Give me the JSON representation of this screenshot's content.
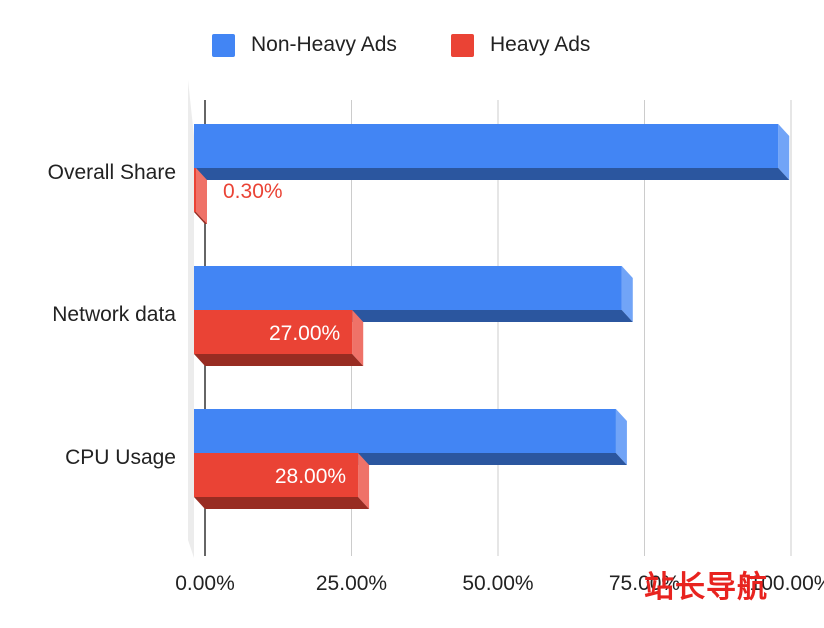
{
  "chart_data": {
    "type": "bar",
    "orientation": "horizontal",
    "style": "3d",
    "categories": [
      "Overall Share",
      "Network data",
      "CPU Usage"
    ],
    "series": [
      {
        "name": "Non-Heavy Ads",
        "color": "#4285f4",
        "values": [
          99.7,
          73.0,
          72.0
        ],
        "show_labels": false
      },
      {
        "name": "Heavy Ads",
        "color": "#ea4335",
        "values": [
          0.3,
          27.0,
          28.0
        ],
        "show_labels": true
      }
    ],
    "data_labels": [
      [
        "",
        "",
        ""
      ],
      [
        "0.30%",
        "27.00%",
        "28.00%"
      ]
    ],
    "x_ticks": [
      "0.00%",
      "25.00%",
      "50.00%",
      "75.00%",
      "100.00%"
    ],
    "xlim": [
      0,
      100
    ],
    "grid": true,
    "legend": "top"
  },
  "watermark": "站长导航"
}
